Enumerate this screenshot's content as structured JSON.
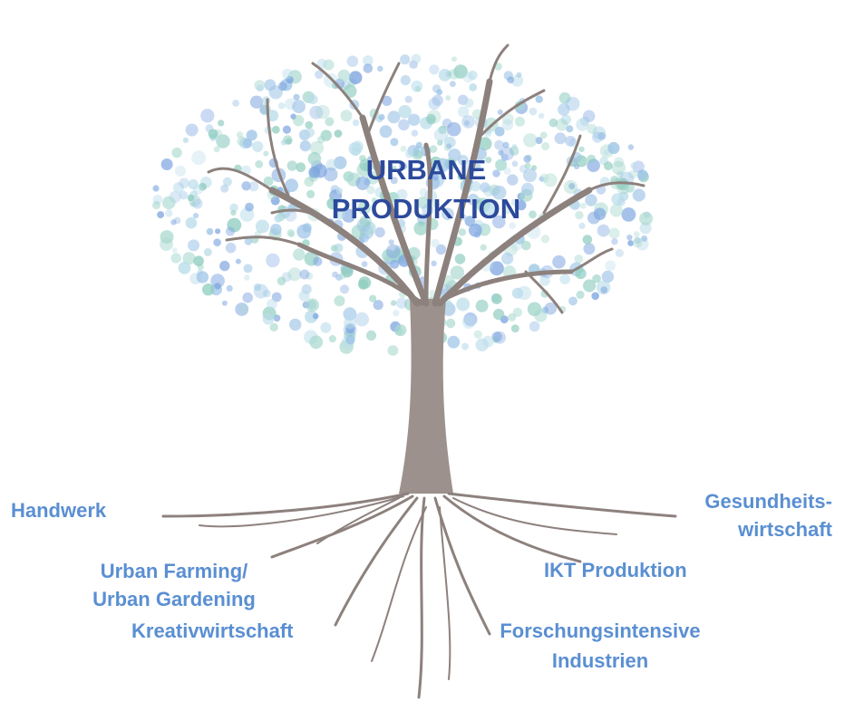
{
  "title": [
    "URBANE",
    "PRODUKTION"
  ],
  "labels": [
    {
      "lines": [
        "Handwerk"
      ]
    },
    {
      "lines": [
        "Urban Farming/",
        "Urban Gardening"
      ]
    },
    {
      "lines": [
        "Kreativwirtschaft"
      ]
    },
    {
      "lines": [
        "Gesundheits-",
        "wirtschaft"
      ]
    },
    {
      "lines": [
        "IKT Produktion"
      ]
    },
    {
      "lines": [
        "Forschungsintensive",
        "Industrien"
      ]
    }
  ]
}
